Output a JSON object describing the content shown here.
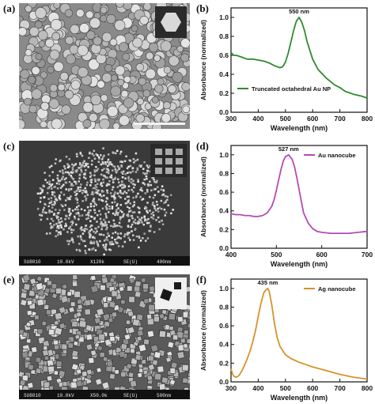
{
  "panels": {
    "a": "(a)",
    "b": "(b)",
    "c": "(c)",
    "d": "(d)",
    "e": "(e)",
    "f": "(f)"
  },
  "sem_images": [
    {
      "id": "a",
      "tone": "#8a8a8a",
      "particle": "#cfcfcf",
      "style": "spheres"
    },
    {
      "id": "c",
      "tone": "#3a3a3a",
      "particle": "#bdbdbd",
      "style": "cluster",
      "info_bar": [
        "SU8010",
        "10.0kV",
        "X120k",
        "SE(U)",
        "400nm"
      ]
    },
    {
      "id": "e",
      "tone": "#5a5a5a",
      "particle": "#b8b8b8",
      "style": "cubes",
      "info_bar": [
        "SU8010",
        "10.0kV",
        "X50.0k",
        "SE(U)",
        "500nm"
      ]
    }
  ],
  "chart_data": [
    {
      "id": "b",
      "type": "line",
      "color": "#2e8b2e",
      "xlabel": "Wavelength (nm)",
      "ylabel": "Absorbance (normalized)",
      "xlim": [
        300,
        800
      ],
      "ylim": [
        0,
        1.1
      ],
      "xticks": [
        300,
        400,
        500,
        600,
        700,
        800
      ],
      "yticks": [
        0.0,
        0.2,
        0.4,
        0.6,
        0.8,
        1.0
      ],
      "annotation": "550 nm",
      "annotation_x": 550,
      "annotation_y": 1.0,
      "legend": "Truncated octahedral Au NP",
      "legend_position": "bottom-right",
      "series": [
        {
          "name": "Truncated octahedral Au NP",
          "x": [
            300,
            310,
            320,
            340,
            360,
            380,
            400,
            420,
            440,
            460,
            480,
            490,
            500,
            510,
            520,
            530,
            540,
            550,
            560,
            570,
            580,
            600,
            620,
            650,
            680,
            700,
            720,
            750,
            780,
            800
          ],
          "y": [
            0.63,
            0.6,
            0.6,
            0.58,
            0.56,
            0.56,
            0.55,
            0.54,
            0.52,
            0.49,
            0.47,
            0.48,
            0.53,
            0.62,
            0.74,
            0.86,
            0.96,
            1.0,
            0.95,
            0.86,
            0.74,
            0.56,
            0.45,
            0.36,
            0.29,
            0.26,
            0.22,
            0.19,
            0.17,
            0.15
          ]
        }
      ]
    },
    {
      "id": "d",
      "type": "line",
      "color": "#b44bb5",
      "xlabel": "Wavelength (nm)",
      "ylabel": "Absorbance (normalized)",
      "xlim": [
        400,
        700
      ],
      "ylim": [
        0,
        1.1
      ],
      "xticks": [
        400,
        500,
        600,
        700
      ],
      "yticks": [
        0.0,
        0.2,
        0.4,
        0.6,
        0.8,
        1.0
      ],
      "annotation": "527 nm",
      "annotation_x": 527,
      "annotation_y": 1.0,
      "legend": "Au nanocube",
      "legend_position": "top-right",
      "series": [
        {
          "name": "Au nanocube",
          "x": [
            400,
            410,
            420,
            430,
            440,
            450,
            460,
            470,
            480,
            490,
            495,
            500,
            505,
            510,
            515,
            520,
            527,
            535,
            540,
            545,
            550,
            555,
            560,
            570,
            580,
            590,
            600,
            620,
            640,
            660,
            680,
            700
          ],
          "y": [
            0.37,
            0.36,
            0.36,
            0.35,
            0.35,
            0.34,
            0.34,
            0.35,
            0.38,
            0.45,
            0.52,
            0.62,
            0.73,
            0.84,
            0.93,
            0.98,
            1.0,
            0.95,
            0.87,
            0.76,
            0.63,
            0.5,
            0.38,
            0.27,
            0.21,
            0.18,
            0.17,
            0.16,
            0.16,
            0.16,
            0.17,
            0.18
          ]
        }
      ]
    },
    {
      "id": "f",
      "type": "line",
      "color": "#d8922a",
      "xlabel": "Wavelength (nm)",
      "ylabel": "Absorbance (normalized)",
      "xlim": [
        300,
        800
      ],
      "ylim": [
        0,
        1.1
      ],
      "xticks": [
        300,
        400,
        500,
        600,
        700,
        800
      ],
      "yticks": [
        0.0,
        0.2,
        0.4,
        0.6,
        0.8,
        1.0
      ],
      "annotation": "435 nm",
      "annotation_x": 435,
      "annotation_y": 1.0,
      "legend": "Ag nanocube",
      "legend_position": "top-right",
      "series": [
        {
          "name": "Ag nanocube",
          "x": [
            300,
            305,
            310,
            320,
            330,
            340,
            350,
            360,
            370,
            380,
            390,
            400,
            410,
            420,
            430,
            435,
            440,
            450,
            460,
            470,
            480,
            500,
            520,
            550,
            580,
            600,
            650,
            700,
            750,
            800
          ],
          "y": [
            0.14,
            0.09,
            0.06,
            0.05,
            0.07,
            0.12,
            0.18,
            0.25,
            0.33,
            0.43,
            0.55,
            0.7,
            0.84,
            0.95,
            0.99,
            1.0,
            0.97,
            0.82,
            0.62,
            0.47,
            0.38,
            0.29,
            0.25,
            0.21,
            0.18,
            0.16,
            0.12,
            0.08,
            0.05,
            0.03
          ]
        }
      ]
    }
  ]
}
